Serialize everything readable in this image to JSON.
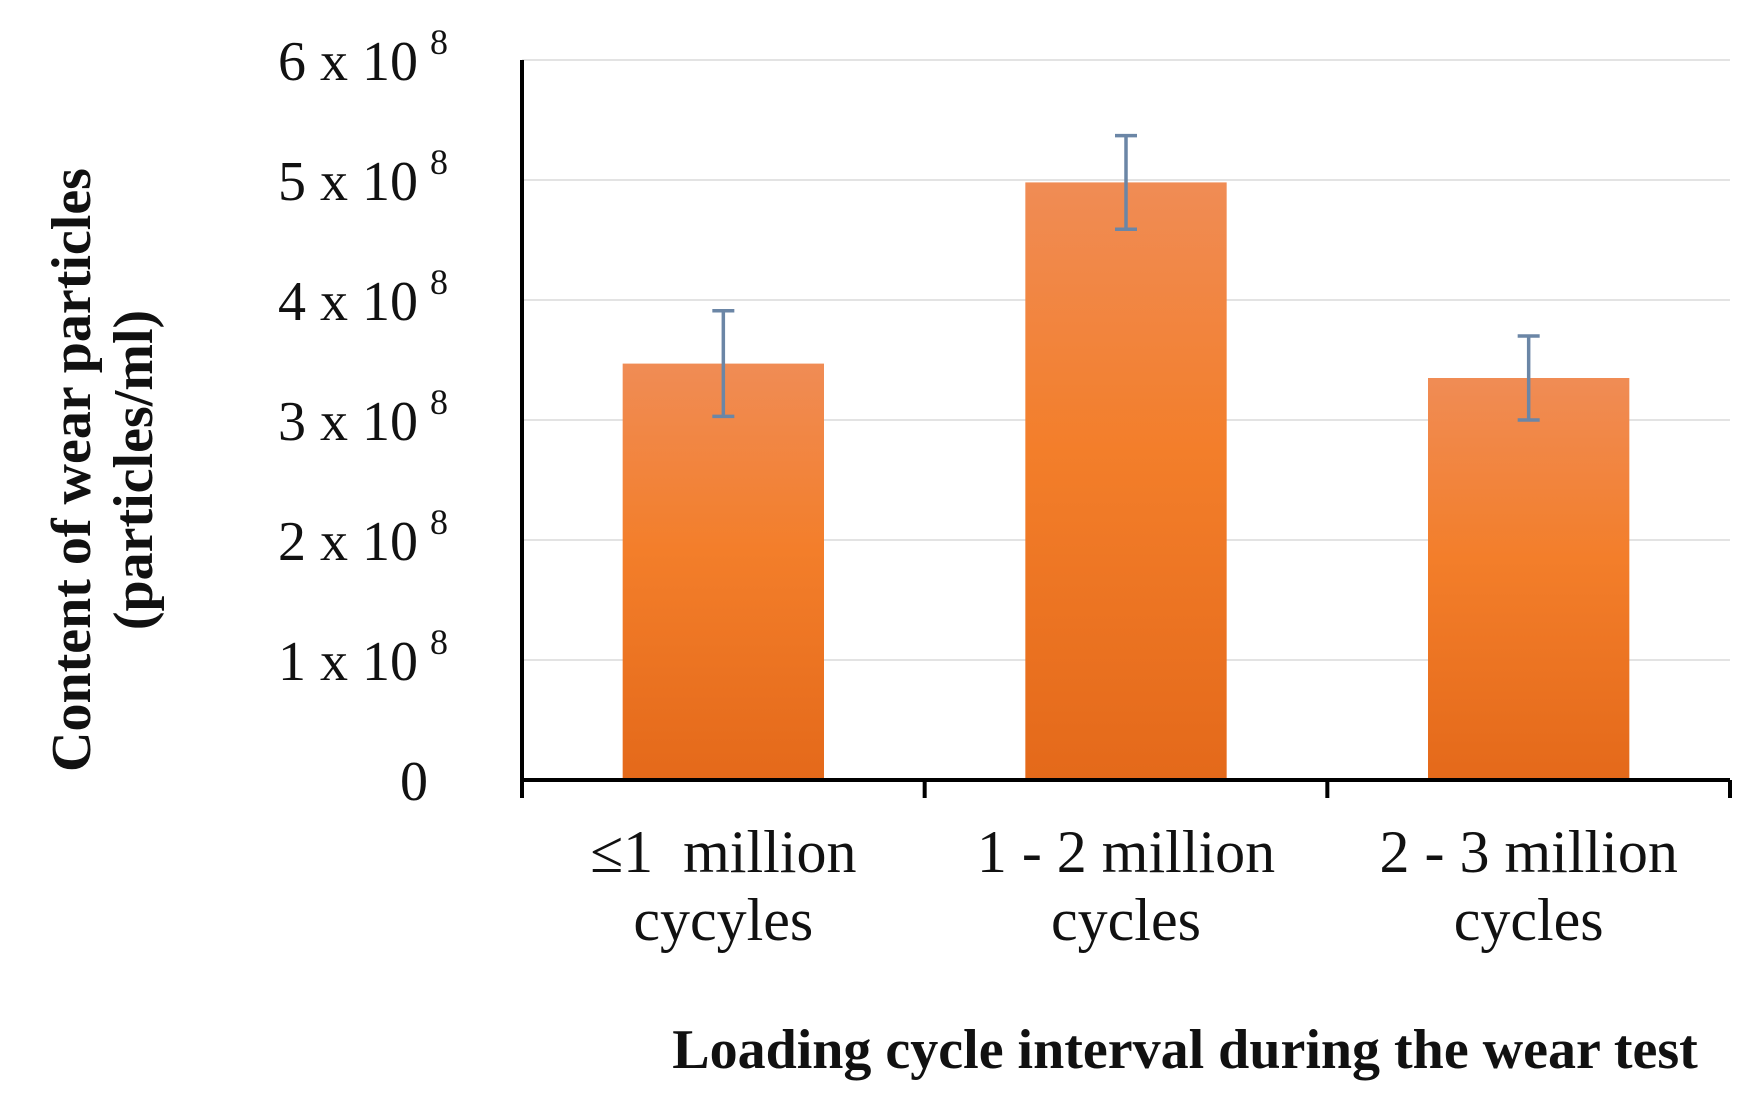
{
  "chart_data": {
    "type": "bar",
    "title": "",
    "xlabel": "Loading cycle interval during the wear test",
    "ylabel_lines": [
      "Content of wear particles",
      "(particles/ml)"
    ],
    "ylim": [
      0,
      600000000
    ],
    "yticks": [
      {
        "value": 0,
        "mantissa": "0",
        "exponent": ""
      },
      {
        "value": 100000000,
        "mantissa": "1 x 10",
        "exponent": "8"
      },
      {
        "value": 200000000,
        "mantissa": "2 x 10",
        "exponent": "8"
      },
      {
        "value": 300000000,
        "mantissa": "3 x 10",
        "exponent": "8"
      },
      {
        "value": 400000000,
        "mantissa": "4 x 10",
        "exponent": "8"
      },
      {
        "value": 500000000,
        "mantissa": "5 x 10",
        "exponent": "8"
      },
      {
        "value": 600000000,
        "mantissa": "6 x 10",
        "exponent": "8"
      }
    ],
    "categories": [
      [
        "≤1  million",
        "cycyles"
      ],
      [
        "1 - 2 million",
        "cycles"
      ],
      [
        "2 - 3 million",
        "cycles"
      ]
    ],
    "values": [
      347000000,
      498000000,
      335000000
    ],
    "errors": [
      44000000,
      39000000,
      35000000
    ],
    "grid": true,
    "colors": {
      "bar_top": "#f08c55",
      "bar_mid": "#f37e2a",
      "bar_bottom": "#e4691a",
      "error_bar": "#6b86a6",
      "axis": "#000000",
      "grid": "#e3e3e3"
    }
  }
}
